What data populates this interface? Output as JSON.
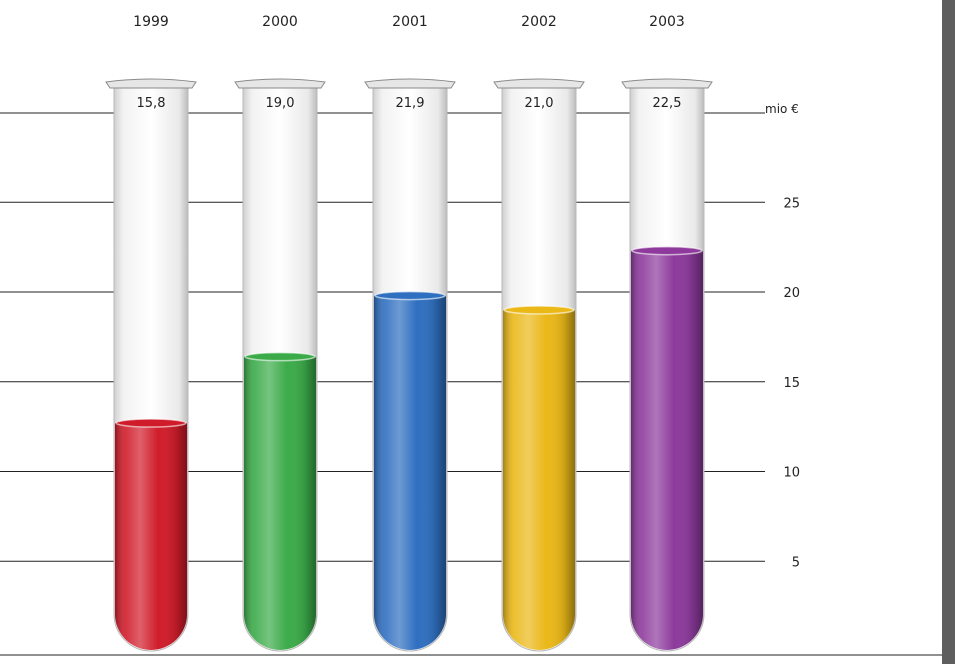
{
  "chart_data": {
    "type": "bar",
    "title": "",
    "xlabel": "",
    "ylabel": "",
    "unit": "mio €",
    "categories": [
      "1999",
      "2000",
      "2001",
      "2002",
      "2003"
    ],
    "values": [
      15.8,
      19.0,
      21.9,
      21.0,
      22.5
    ],
    "value_labels": [
      "15,8",
      "19,0",
      "21,9",
      "21,0",
      "22,5"
    ],
    "fill_levels": [
      12.7,
      16.4,
      19.8,
      19.0,
      22.3
    ],
    "ylim": [
      0,
      30
    ],
    "yticks": [
      5,
      10,
      15,
      20,
      25
    ],
    "ytick_labels": [
      "5",
      "10",
      "15",
      "20",
      "25"
    ],
    "grid": true,
    "legend": "none",
    "colors": [
      "#d01c2a",
      "#3bab49",
      "#2f6fc0",
      "#eab817",
      "#8d3a9c"
    ]
  }
}
